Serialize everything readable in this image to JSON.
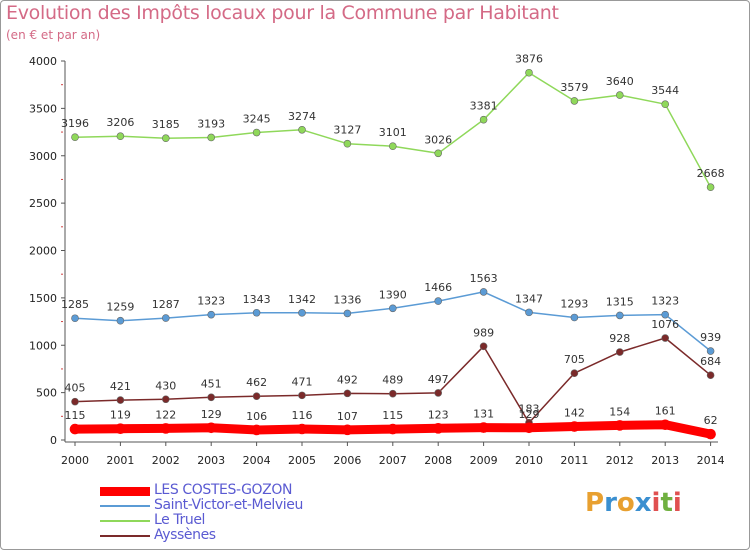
{
  "header": {
    "title": "Evolution des Impôts locaux pour la Commune par Habitant",
    "subtitle": "(en € et par an)"
  },
  "logo": {
    "letters": [
      "P",
      "r",
      "o",
      "x",
      "i",
      "t",
      "i"
    ],
    "colors": [
      "#e8a030",
      "#3a8fd0",
      "#e8a030",
      "#3a8fd0",
      "#e05050",
      "#70b040",
      "#e05050"
    ]
  },
  "chart_data": {
    "type": "line",
    "title": "Evolution des Impôts locaux pour la Commune par Habitant",
    "subtitle": "(en € et par an)",
    "xlabel": "",
    "ylabel": "",
    "ylim": [
      0,
      4000
    ],
    "yticks": [
      "0",
      "500",
      "1000",
      "1500",
      "2000",
      "2500",
      "3000",
      "3500",
      "4000"
    ],
    "categories": [
      "2000",
      "2001",
      "2002",
      "2003",
      "2004",
      "2005",
      "2006",
      "2007",
      "2008",
      "2009",
      "2010",
      "2011",
      "2012",
      "2013",
      "2014"
    ],
    "series": [
      {
        "name": "LES COSTES-GOZON",
        "color": "#ff0000",
        "values": [
          115,
          119,
          122,
          129,
          106,
          116,
          107,
          115,
          123,
          131,
          129,
          142,
          154,
          161,
          62
        ]
      },
      {
        "name": "Saint-Victor-et-Melvieu",
        "color": "#5b9bd5",
        "values": [
          1285,
          1259,
          1287,
          1323,
          1343,
          1342,
          1336,
          1390,
          1466,
          1563,
          1347,
          1293,
          1315,
          1323,
          939
        ]
      },
      {
        "name": "Le Truel",
        "color": "#8fd85a",
        "values": [
          3196,
          3206,
          3185,
          3193,
          3245,
          3274,
          3127,
          3101,
          3026,
          3381,
          3876,
          3579,
          3640,
          3544,
          2668
        ]
      },
      {
        "name": "Ayssènes",
        "color": "#7b2a2a",
        "values": [
          405,
          421,
          430,
          451,
          462,
          471,
          492,
          489,
          497,
          989,
          183,
          705,
          928,
          1076,
          684
        ]
      }
    ],
    "legend_position": "bottom-left",
    "grid": false
  }
}
